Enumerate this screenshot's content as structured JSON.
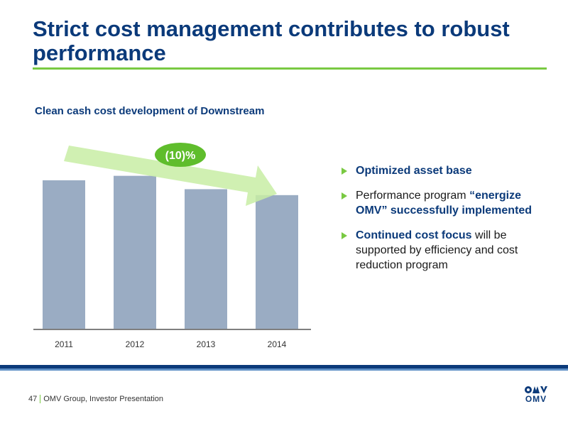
{
  "slide": {
    "title": "Strict cost management contributes to robust performance",
    "subtitle": "Clean cash cost development of Downstream"
  },
  "chart_data": {
    "type": "bar",
    "title": "Clean cash cost development of Downstream",
    "categories": [
      "2011",
      "2012",
      "2013",
      "2014"
    ],
    "values": [
      100,
      103,
      94,
      90
    ],
    "ylim": [
      0,
      110
    ],
    "grid": false,
    "annotation": "(10)%",
    "colors": {
      "bar": "#9aacc3",
      "arrow": "#c8eda4",
      "badge": "#5fbd2c",
      "axis": "#555555"
    }
  },
  "bullets": [
    {
      "parts": [
        {
          "text": "Optimized asset base",
          "highlight": true
        }
      ]
    },
    {
      "parts": [
        {
          "text": "Performance program ",
          "highlight": false
        },
        {
          "text": "“energize OMV” successfully implemented",
          "highlight": true
        }
      ]
    },
    {
      "parts": [
        {
          "text": "Continued cost focus",
          "highlight": true
        },
        {
          "text": " will be supported by efficiency and cost reduction program",
          "highlight": false
        }
      ]
    }
  ],
  "footer": {
    "page_number": "47",
    "text": "OMV Group, Investor Presentation",
    "logo_text": "OMV"
  },
  "colors": {
    "title": "#0b3a7a",
    "accent_green": "#79c942",
    "footer_bar": "#0b3a7a"
  }
}
